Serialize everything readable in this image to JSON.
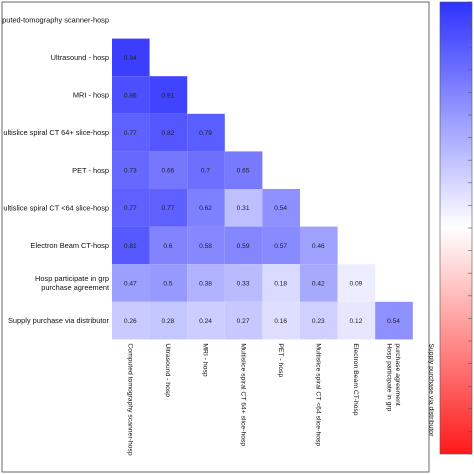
{
  "chart_data": {
    "type": "heatmap",
    "variables": [
      "Computed tomography scanner-hosp",
      "Ultrasound - hosp",
      "MRI - hosp",
      "Multislice spiral CT 64+ slice-hosp",
      "PET - hosp",
      "Multislice spiral CT <64 slice-hosp",
      "Electron Beam CT-hosp",
      "Hosp participate in grp purchase agreement",
      "Supply purchase via distributor"
    ],
    "row_labels": [
      "puted-tomography scanner-hosp",
      "Ultrasound - hosp",
      "MRI - hosp",
      "ultislice spiral CT 64+ slice-hosp",
      "PET - hosp",
      "ultislice spiral CT <64 slice-hosp",
      "Electron Beam CT-hosp",
      "Hosp participate in grp\npurchase agreement",
      "Supply purchase via distributor"
    ],
    "column_labels": [
      "Computed tomography scanner-hosp",
      "Ultrasound - hosp",
      "MRI - hosp",
      "Multislice spiral CT 64+ slice-hosp",
      "PET - hosp",
      "Multislice spiral CT <64 slice-hosp",
      "Electron Beam CT-hosp",
      "Hosp participate in grp\npurchase agreement",
      "Supply purchase via distributor"
    ],
    "values": [
      [],
      [
        0.94
      ],
      [
        0.86,
        0.91
      ],
      [
        0.77,
        0.82,
        0.79
      ],
      [
        0.73,
        0.66,
        0.7,
        0.65
      ],
      [
        0.77,
        0.77,
        0.62,
        0.31,
        0.54
      ],
      [
        0.81,
        0.6,
        0.58,
        0.59,
        0.57,
        0.46
      ],
      [
        0.47,
        0.5,
        0.38,
        0.33,
        0.18,
        0.42,
        0.09
      ],
      [
        0.26,
        0.28,
        0.24,
        0.27,
        0.16,
        0.23,
        0.12,
        0.54
      ]
    ],
    "value_labels": [
      [],
      [
        "0.94"
      ],
      [
        "0.86",
        "0.91"
      ],
      [
        "0.77",
        "0.82",
        "0.79"
      ],
      [
        "0.73",
        "0.66",
        "0.7",
        "0.65"
      ],
      [
        "0.77",
        "0.77",
        "0.62",
        "0.31",
        "0.54"
      ],
      [
        "0.81",
        "0.6",
        "0.58",
        "0.59",
        "0.57",
        "0.46"
      ],
      [
        "0.47",
        "0.5",
        "0.38",
        "0.33",
        "0.18",
        "0.42",
        "0.09"
      ],
      [
        "0.26",
        "0.28",
        "0.24",
        "0.27",
        "0.16",
        "0.23",
        "0.12",
        "0.54"
      ]
    ],
    "color_scale": {
      "min": -1,
      "max": 1,
      "low_color": "#ff0000",
      "mid_color": "#ffffff",
      "high_color": "#0000ff"
    },
    "legend": "right",
    "grid": false
  }
}
